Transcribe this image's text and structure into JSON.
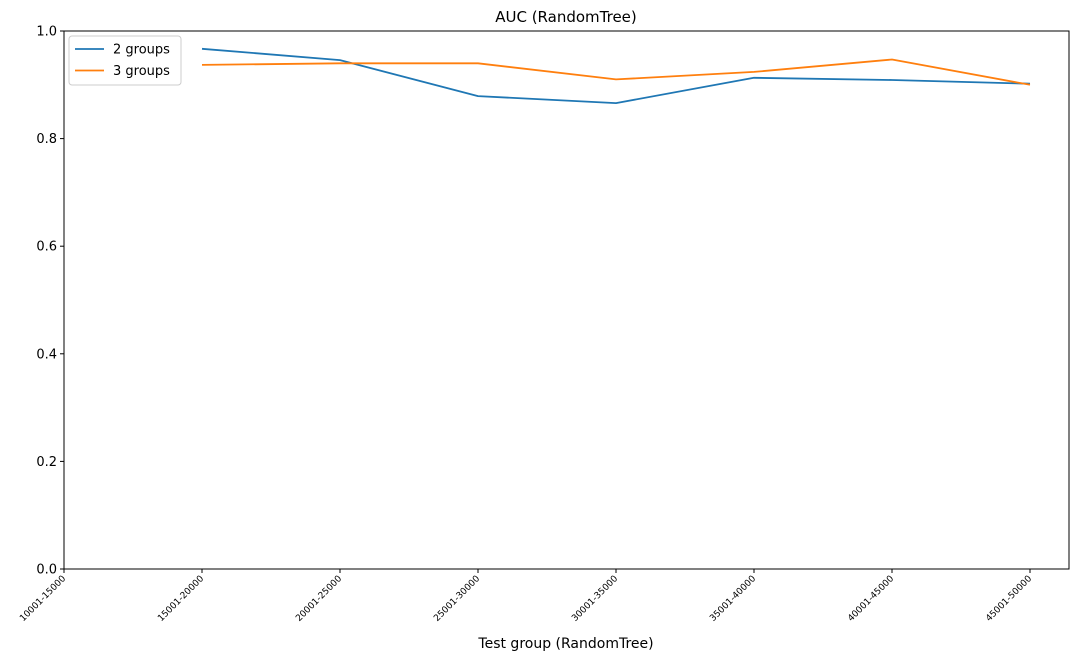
{
  "chart_data": {
    "type": "line",
    "title": "AUC (RandomTree)",
    "xlabel": "Test group (RandomTree)",
    "ylabel": "",
    "categories": [
      "10001-15000",
      "15001-20000",
      "20001-25000",
      "25001-30000",
      "30001-35000",
      "35001-40000",
      "40001-45000",
      "45001-50000"
    ],
    "ylim": [
      0.0,
      1.0
    ],
    "yticks": [
      "0.0",
      "0.2",
      "0.4",
      "0.6",
      "0.8",
      "1.0"
    ],
    "series": [
      {
        "name": "2 groups",
        "color": "#1f77b4",
        "x": [
          "15001-20000",
          "20001-25000",
          "25001-30000",
          "30001-35000",
          "35001-40000",
          "40001-45000",
          "45001-50000"
        ],
        "values": [
          0.967,
          0.946,
          0.879,
          0.866,
          0.913,
          0.909,
          0.902
        ]
      },
      {
        "name": "3 groups",
        "color": "#ff7f0e",
        "x": [
          "15001-20000",
          "20001-25000",
          "25001-30000",
          "30001-35000",
          "35001-40000",
          "40001-45000",
          "45001-50000"
        ],
        "values": [
          0.937,
          0.94,
          0.94,
          0.91,
          0.924,
          0.947,
          0.9
        ]
      }
    ],
    "legend": "top-left",
    "grid": false
  }
}
